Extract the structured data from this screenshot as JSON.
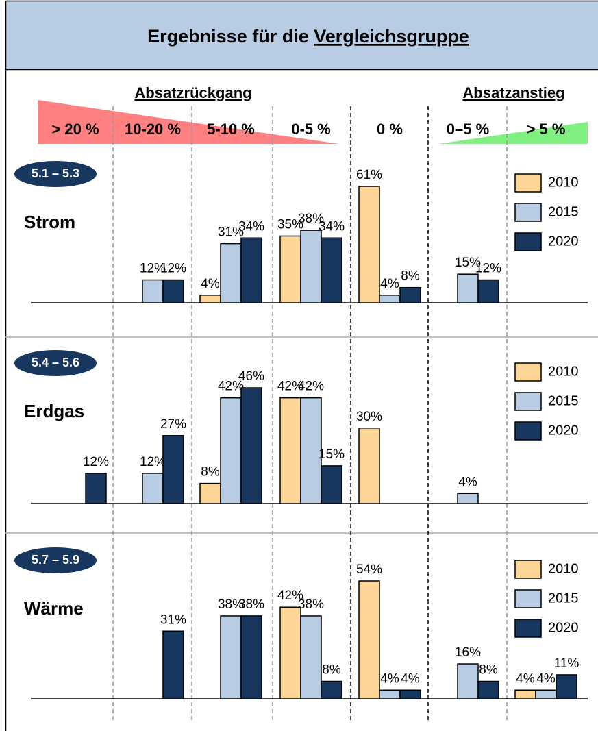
{
  "header": {
    "title": "Ergebnisse für die",
    "title_underlined": "Vergleichsgruppe"
  },
  "groups": {
    "decline": "Absatzrückgang",
    "increase": "Absatzanstieg"
  },
  "categories": [
    "> 20 %",
    "10-20 %",
    "5-10 %",
    "0-5 %",
    "0 %",
    "0–5 %",
    "> 5 %"
  ],
  "chart_data": [
    {
      "type": "bar",
      "badge": "5.1 – 5.3",
      "title": "Strom",
      "ylim": [
        0,
        61
      ],
      "series": [
        {
          "name": "2010",
          "color": "#fdd597",
          "values": [
            null,
            null,
            4,
            35,
            61,
            null,
            null
          ],
          "value_labels": [
            null,
            null,
            "4%",
            "35%",
            "61%",
            null,
            null
          ]
        },
        {
          "name": "2015",
          "color": "#b8cce4",
          "values": [
            null,
            12,
            31,
            38,
            4,
            15,
            null
          ],
          "value_labels": [
            null,
            "12%",
            "31%",
            "38%",
            "4%",
            "15%",
            null
          ]
        },
        {
          "name": "2020",
          "color": "#17375e",
          "values": [
            null,
            12,
            34,
            34,
            8,
            12,
            null
          ],
          "value_labels": [
            null,
            "12%",
            "34%",
            "34%",
            "8%",
            "12%",
            null
          ]
        }
      ]
    },
    {
      "type": "bar",
      "badge": "5.4 – 5.6",
      "title": "Erdgas",
      "ylim": [
        0,
        46
      ],
      "series": [
        {
          "name": "2010",
          "color": "#fdd597",
          "values": [
            null,
            null,
            8,
            42,
            30,
            null,
            null
          ],
          "value_labels": [
            null,
            null,
            "8%",
            "42%",
            "30%",
            null,
            null
          ]
        },
        {
          "name": "2015",
          "color": "#b8cce4",
          "values": [
            null,
            12,
            42,
            42,
            null,
            4,
            null
          ],
          "value_labels": [
            null,
            "12%",
            "42%",
            "42%",
            null,
            "4%",
            null
          ]
        },
        {
          "name": "2020",
          "color": "#17375e",
          "values": [
            12,
            27,
            46,
            15,
            null,
            null,
            null
          ],
          "value_labels": [
            "12%",
            "27%",
            "46%",
            "15%",
            null,
            null,
            null
          ]
        }
      ]
    },
    {
      "type": "bar",
      "badge": "5.7 – 5.9",
      "title": "Wärme",
      "ylim": [
        0,
        54
      ],
      "series": [
        {
          "name": "2010",
          "color": "#fdd597",
          "values": [
            null,
            null,
            null,
            42,
            54,
            null,
            4
          ],
          "value_labels": [
            null,
            null,
            null,
            "42%",
            "54%",
            null,
            "4%"
          ]
        },
        {
          "name": "2015",
          "color": "#b8cce4",
          "values": [
            null,
            null,
            38,
            38,
            4,
            16,
            4
          ],
          "value_labels": [
            null,
            null,
            "38%",
            "38%",
            "4%",
            "16%",
            "4%"
          ]
        },
        {
          "name": "2020",
          "color": "#17375e",
          "values": [
            null,
            31,
            38,
            8,
            4,
            8,
            11
          ],
          "value_labels": [
            null,
            "31%",
            "38%",
            "8%",
            "4%",
            "8%",
            "11%"
          ]
        }
      ]
    }
  ]
}
